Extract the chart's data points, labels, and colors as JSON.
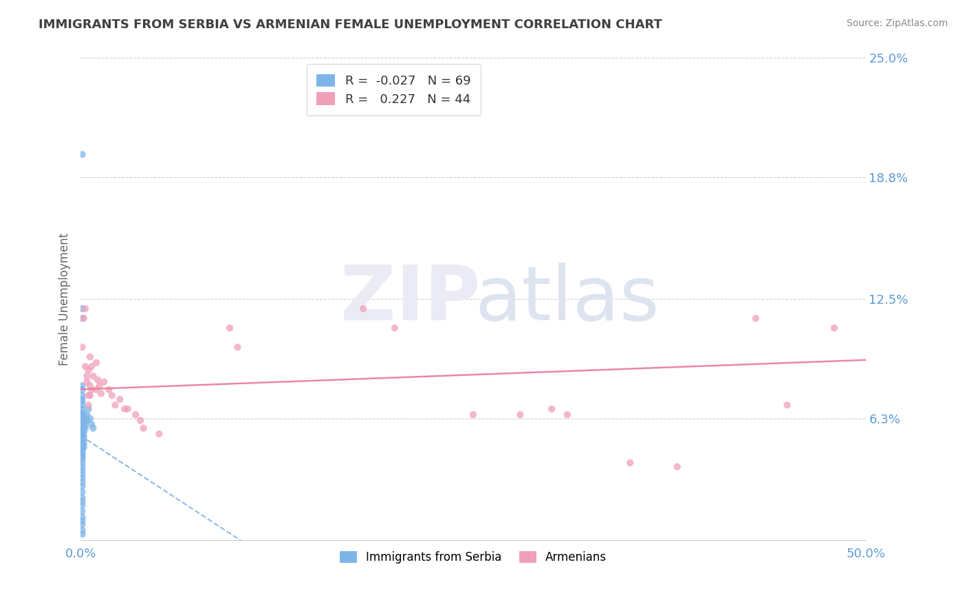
{
  "title": "IMMIGRANTS FROM SERBIA VS ARMENIAN FEMALE UNEMPLOYMENT CORRELATION CHART",
  "source": "Source: ZipAtlas.com",
  "xlabel": "",
  "ylabel": "Female Unemployment",
  "xlim": [
    0.0,
    0.5
  ],
  "ylim": [
    0.0,
    0.25
  ],
  "ytick_vals": [
    0.0,
    0.063,
    0.125,
    0.188,
    0.25
  ],
  "ytick_labels": [
    "",
    "6.3%",
    "12.5%",
    "18.8%",
    "25.0%"
  ],
  "xtick_labels": [
    "0.0%",
    "50.0%"
  ],
  "xticks": [
    0.0,
    0.5
  ],
  "serbia_color": "#7eb5e8",
  "armenia_color": "#f0a0b8",
  "armenia_line_color": "#e87a9a",
  "serbia_R": -0.027,
  "serbia_N": 69,
  "armenia_R": 0.227,
  "armenia_N": 44,
  "legend_serbia": "Immigrants from Serbia",
  "legend_armenia": "Armenians",
  "title_color": "#404040",
  "axis_label_color": "#5b9bd5",
  "grid_color": "#bbbbbb",
  "serbia_points": [
    [
      0.001,
      0.2
    ],
    [
      0.001,
      0.12
    ],
    [
      0.001,
      0.115
    ],
    [
      0.001,
      0.08
    ],
    [
      0.001,
      0.078
    ],
    [
      0.001,
      0.075
    ],
    [
      0.001,
      0.073
    ],
    [
      0.001,
      0.072
    ],
    [
      0.001,
      0.07
    ],
    [
      0.001,
      0.068
    ],
    [
      0.001,
      0.066
    ],
    [
      0.001,
      0.065
    ],
    [
      0.001,
      0.063
    ],
    [
      0.001,
      0.062
    ],
    [
      0.001,
      0.061
    ],
    [
      0.001,
      0.06
    ],
    [
      0.001,
      0.059
    ],
    [
      0.001,
      0.058
    ],
    [
      0.001,
      0.057
    ],
    [
      0.001,
      0.056
    ],
    [
      0.001,
      0.055
    ],
    [
      0.001,
      0.054
    ],
    [
      0.001,
      0.053
    ],
    [
      0.001,
      0.052
    ],
    [
      0.001,
      0.051
    ],
    [
      0.001,
      0.05
    ],
    [
      0.001,
      0.049
    ],
    [
      0.001,
      0.048
    ],
    [
      0.001,
      0.047
    ],
    [
      0.001,
      0.046
    ],
    [
      0.001,
      0.045
    ],
    [
      0.001,
      0.044
    ],
    [
      0.001,
      0.043
    ],
    [
      0.001,
      0.042
    ],
    [
      0.001,
      0.04
    ],
    [
      0.001,
      0.038
    ],
    [
      0.001,
      0.036
    ],
    [
      0.001,
      0.034
    ],
    [
      0.001,
      0.032
    ],
    [
      0.001,
      0.03
    ],
    [
      0.001,
      0.028
    ],
    [
      0.001,
      0.025
    ],
    [
      0.001,
      0.022
    ],
    [
      0.001,
      0.02
    ],
    [
      0.001,
      0.018
    ],
    [
      0.001,
      0.015
    ],
    [
      0.001,
      0.012
    ],
    [
      0.001,
      0.01
    ],
    [
      0.001,
      0.008
    ],
    [
      0.001,
      0.005
    ],
    [
      0.001,
      0.003
    ],
    [
      0.002,
      0.065
    ],
    [
      0.002,
      0.062
    ],
    [
      0.002,
      0.06
    ],
    [
      0.002,
      0.058
    ],
    [
      0.002,
      0.056
    ],
    [
      0.002,
      0.054
    ],
    [
      0.002,
      0.052
    ],
    [
      0.002,
      0.05
    ],
    [
      0.002,
      0.048
    ],
    [
      0.003,
      0.063
    ],
    [
      0.003,
      0.06
    ],
    [
      0.003,
      0.058
    ],
    [
      0.004,
      0.065
    ],
    [
      0.004,
      0.062
    ],
    [
      0.005,
      0.068
    ],
    [
      0.006,
      0.063
    ],
    [
      0.007,
      0.06
    ],
    [
      0.008,
      0.058
    ]
  ],
  "armenia_points": [
    [
      0.001,
      0.1
    ],
    [
      0.002,
      0.115
    ],
    [
      0.003,
      0.12
    ],
    [
      0.003,
      0.09
    ],
    [
      0.004,
      0.085
    ],
    [
      0.004,
      0.082
    ],
    [
      0.005,
      0.088
    ],
    [
      0.005,
      0.075
    ],
    [
      0.005,
      0.07
    ],
    [
      0.006,
      0.095
    ],
    [
      0.006,
      0.08
    ],
    [
      0.006,
      0.075
    ],
    [
      0.007,
      0.09
    ],
    [
      0.007,
      0.078
    ],
    [
      0.008,
      0.085
    ],
    [
      0.01,
      0.092
    ],
    [
      0.01,
      0.078
    ],
    [
      0.011,
      0.083
    ],
    [
      0.012,
      0.08
    ],
    [
      0.013,
      0.076
    ],
    [
      0.015,
      0.082
    ],
    [
      0.018,
      0.078
    ],
    [
      0.02,
      0.075
    ],
    [
      0.022,
      0.07
    ],
    [
      0.025,
      0.073
    ],
    [
      0.028,
      0.068
    ],
    [
      0.03,
      0.068
    ],
    [
      0.035,
      0.065
    ],
    [
      0.038,
      0.062
    ],
    [
      0.04,
      0.058
    ],
    [
      0.095,
      0.11
    ],
    [
      0.1,
      0.1
    ],
    [
      0.18,
      0.12
    ],
    [
      0.2,
      0.11
    ],
    [
      0.25,
      0.065
    ],
    [
      0.28,
      0.065
    ],
    [
      0.3,
      0.068
    ],
    [
      0.31,
      0.065
    ],
    [
      0.35,
      0.04
    ],
    [
      0.38,
      0.038
    ],
    [
      0.43,
      0.115
    ],
    [
      0.45,
      0.07
    ],
    [
      0.48,
      0.11
    ],
    [
      0.05,
      0.055
    ]
  ]
}
